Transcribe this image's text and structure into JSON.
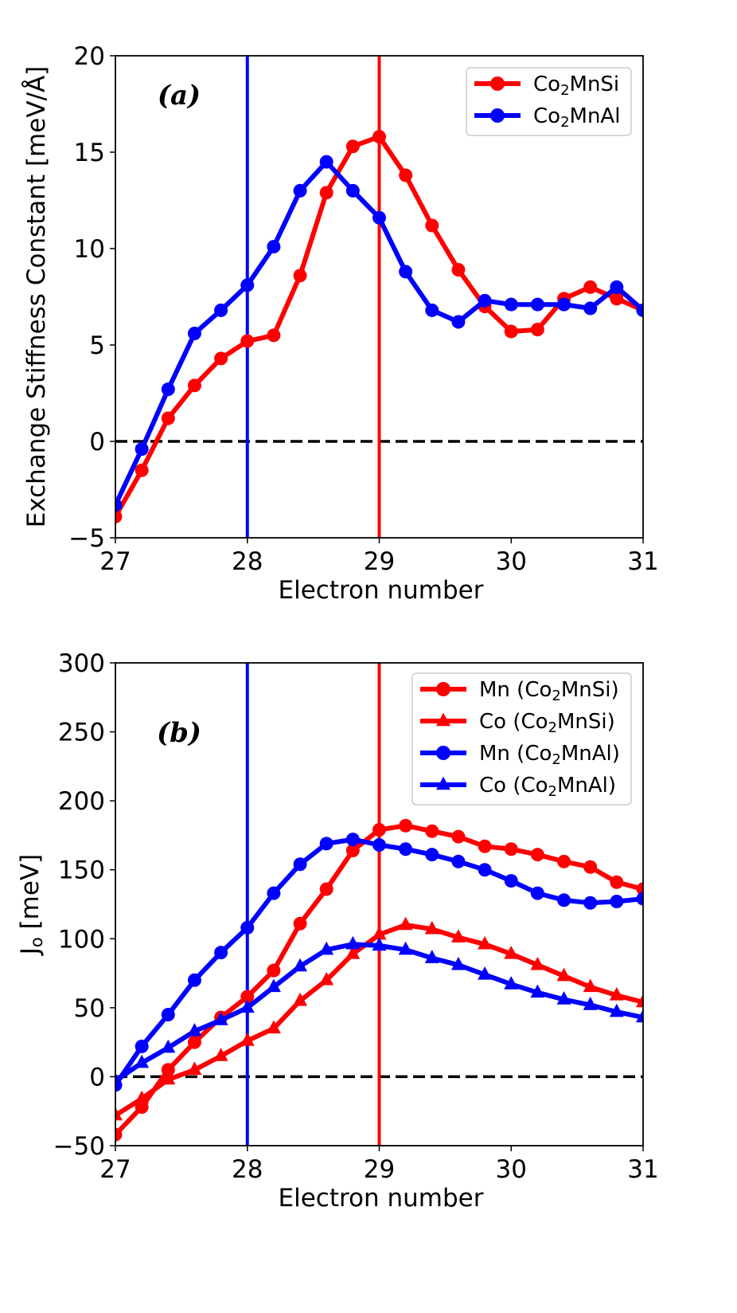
{
  "colors": {
    "red": "#ff0000",
    "blue": "#0000ff",
    "axis": "#000000",
    "background": "#ffffff"
  },
  "chart_data": [
    {
      "type": "line",
      "panel_label": "(a)",
      "xlabel": "Electron number",
      "ylabel": "Exchange Stiffness Constant [meV/Å]",
      "xlim": [
        27,
        31
      ],
      "ylim": [
        -5,
        20
      ],
      "x_ticks": [
        27,
        28,
        29,
        30,
        31
      ],
      "x_tick_labels": [
        "27",
        "28",
        "29",
        "30",
        "31"
      ],
      "y_ticks": [
        -5,
        0,
        5,
        10,
        15,
        20
      ],
      "y_tick_labels": [
        "−5",
        "0",
        "5",
        "10",
        "15",
        "20"
      ],
      "grid": false,
      "legend_position": "top-right",
      "reference_lines": {
        "horizontal_dashed": 0,
        "vertical": [
          {
            "x": 28,
            "color": "#0000ff"
          },
          {
            "x": 29,
            "color": "#ff0000"
          }
        ]
      },
      "x": [
        27.0,
        27.2,
        27.4,
        27.6,
        27.8,
        28.0,
        28.2,
        28.4,
        28.6,
        28.8,
        29.0,
        29.2,
        29.4,
        29.6,
        29.8,
        30.0,
        30.2,
        30.4,
        30.6,
        30.8,
        31.0
      ],
      "series": [
        {
          "name_parts": [
            "Co",
            "2",
            "MnSi"
          ],
          "color": "#ff0000",
          "marker": "circle",
          "values": [
            -3.9,
            -1.5,
            1.2,
            2.9,
            4.3,
            5.2,
            5.5,
            8.6,
            12.9,
            15.3,
            15.8,
            13.8,
            11.2,
            8.9,
            7.0,
            5.7,
            5.8,
            7.4,
            8.0,
            7.4,
            6.8
          ]
        },
        {
          "name_parts": [
            "Co",
            "2",
            "MnAl"
          ],
          "color": "#0000ff",
          "marker": "circle",
          "values": [
            -3.3,
            -0.4,
            2.7,
            5.6,
            6.8,
            8.1,
            10.1,
            13.0,
            14.5,
            13.0,
            11.6,
            8.8,
            6.8,
            6.2,
            7.3,
            7.1,
            7.1,
            7.1,
            6.9,
            8.0,
            6.8
          ]
        }
      ]
    },
    {
      "type": "line",
      "panel_label": "(b)",
      "xlabel": "Electron number",
      "ylabel_main": "J",
      "ylabel_sub": "o",
      "ylabel_unit": " [meV]",
      "xlim": [
        27,
        31
      ],
      "ylim": [
        -50,
        300
      ],
      "x_ticks": [
        27,
        28,
        29,
        30,
        31
      ],
      "x_tick_labels": [
        "27",
        "28",
        "29",
        "30",
        "31"
      ],
      "y_ticks": [
        -50,
        0,
        50,
        100,
        150,
        200,
        250,
        300
      ],
      "y_tick_labels": [
        "−50",
        "0",
        "50",
        "100",
        "150",
        "200",
        "250",
        "300"
      ],
      "grid": false,
      "legend_position": "top-right",
      "reference_lines": {
        "horizontal_dashed": 0,
        "vertical": [
          {
            "x": 28,
            "color": "#0000ff"
          },
          {
            "x": 29,
            "color": "#ff0000"
          }
        ]
      },
      "x": [
        27.0,
        27.2,
        27.4,
        27.6,
        27.8,
        28.0,
        28.2,
        28.4,
        28.6,
        28.8,
        29.0,
        29.2,
        29.4,
        29.6,
        29.8,
        30.0,
        30.2,
        30.4,
        30.6,
        30.8,
        31.0
      ],
      "series": [
        {
          "name_parts": [
            "Mn (Co",
            "2",
            "MnSi)"
          ],
          "color": "#ff0000",
          "marker": "circle",
          "values": [
            -42,
            -22,
            5,
            25,
            43,
            58,
            77,
            111,
            136,
            164,
            179,
            182,
            178,
            174,
            167,
            165,
            161,
            156,
            152,
            141,
            136
          ]
        },
        {
          "name_parts": [
            "Co (Co",
            "2",
            "MnSi)"
          ],
          "color": "#ff0000",
          "marker": "triangle",
          "values": [
            -28,
            -16,
            -2,
            5,
            15,
            26,
            35,
            55,
            70,
            89,
            103,
            110,
            107,
            101,
            96,
            89,
            81,
            73,
            65,
            59,
            54
          ]
        },
        {
          "name_parts": [
            "Mn (Co",
            "2",
            "MnAl)"
          ],
          "color": "#0000ff",
          "marker": "circle",
          "values": [
            -6,
            22,
            45,
            70,
            90,
            108,
            133,
            154,
            169,
            172,
            168,
            165,
            161,
            156,
            150,
            142,
            133,
            128,
            126,
            127,
            129
          ]
        },
        {
          "name_parts": [
            "Co (Co",
            "2",
            "MnAl)"
          ],
          "color": "#0000ff",
          "marker": "triangle",
          "values": [
            -3,
            10,
            21,
            33,
            41,
            50,
            65,
            80,
            92,
            96,
            95,
            92,
            86,
            81,
            74,
            67,
            61,
            56,
            52,
            47,
            43
          ]
        }
      ]
    }
  ]
}
